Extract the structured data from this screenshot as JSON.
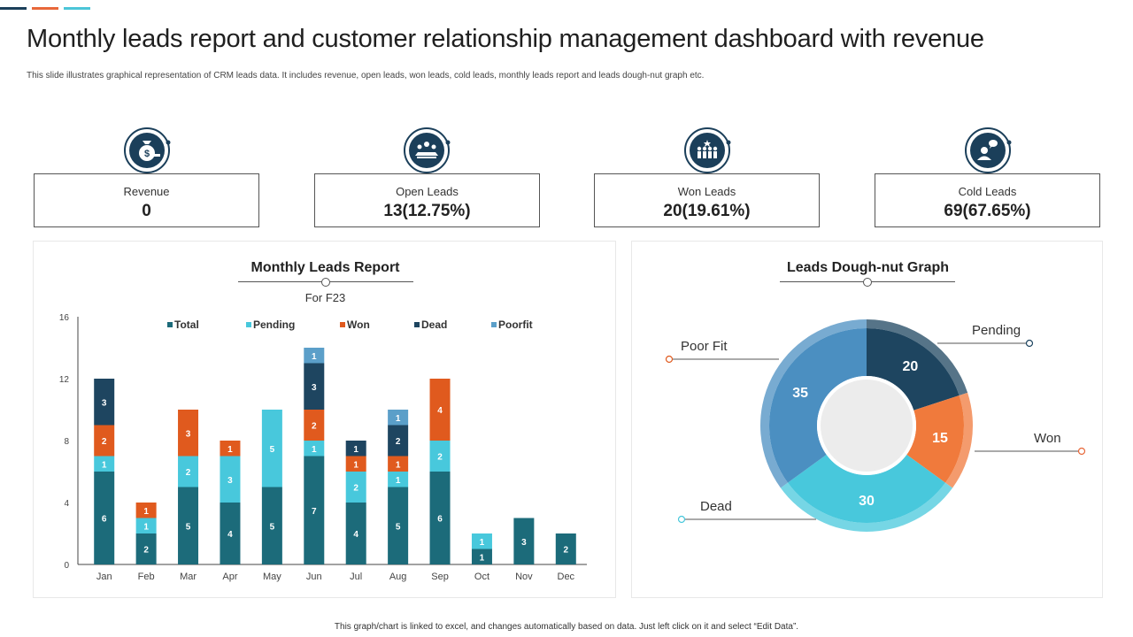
{
  "page": {
    "title": "Monthly leads report and customer relationship management dashboard with revenue",
    "subtitle": "This slide illustrates graphical representation of CRM  leads data. It includes revenue, open leads, won leads, cold leads, monthly leads report and leads dough-nut graph  etc.",
    "footer": "This graph/chart is linked to excel, and changes automatically based on data. Just left click on it and select “Edit Data”."
  },
  "colors": {
    "navy": "#1b3f5a",
    "accent_orange": "#e8683a",
    "accent_cyan": "#4cc5d8",
    "total": "#1c6b7a",
    "pending": "#48c8dc",
    "won": "#e05a1e",
    "dead": "#1e4560",
    "poorfit": "#5b9fc9"
  },
  "kpis": [
    {
      "label": "Revenue",
      "value": "0",
      "icon": "money-bag-icon"
    },
    {
      "label": "Open Leads",
      "value": "13(12.75%)",
      "icon": "team-meeting-icon"
    },
    {
      "label": "Won Leads",
      "value": "20(19.61%)",
      "icon": "group-celebrate-icon"
    },
    {
      "label": "Cold Leads",
      "value": "69(67.65%)",
      "icon": "person-chat-icon"
    }
  ],
  "monthly_panel": {
    "title": "Monthly Leads Report",
    "subtitle": "For F23"
  },
  "donut_panel": {
    "title": "Leads Dough-nut Graph"
  },
  "chart_data": [
    {
      "type": "bar",
      "stacked": true,
      "title": "Monthly Leads Report",
      "subtitle": "For F23",
      "categories": [
        "Jan",
        "Feb",
        "Mar",
        "Apr",
        "May",
        "Jun",
        "Jul",
        "Aug",
        "Sep",
        "Oct",
        "Nov",
        "Dec"
      ],
      "series": [
        {
          "name": "Total",
          "color": "#1c6b7a",
          "values": [
            6,
            2,
            5,
            4,
            5,
            7,
            4,
            5,
            6,
            1,
            3,
            2
          ]
        },
        {
          "name": "Pending",
          "color": "#48c8dc",
          "values": [
            1,
            1,
            2,
            3,
            5,
            1,
            2,
            1,
            2,
            1,
            0,
            0
          ]
        },
        {
          "name": "Won",
          "color": "#e05a1e",
          "values": [
            2,
            1,
            3,
            1,
            0,
            2,
            1,
            1,
            4,
            0,
            0,
            0
          ]
        },
        {
          "name": "Dead",
          "color": "#1e4560",
          "values": [
            3,
            0,
            0,
            0,
            0,
            3,
            1,
            2,
            0,
            0,
            0,
            0
          ]
        },
        {
          "name": "Poorfit",
          "color": "#5b9fc9",
          "values": [
            0,
            0,
            0,
            0,
            0,
            1,
            0,
            1,
            0,
            0,
            0,
            0
          ]
        }
      ],
      "yticks": [
        0,
        4,
        8,
        12,
        16
      ],
      "ylim": [
        0,
        16
      ],
      "legend": "top",
      "grid": false
    },
    {
      "type": "pie",
      "donut": true,
      "title": "Leads Dough-nut Graph",
      "slices": [
        {
          "label": "Pending",
          "value": 20,
          "color": "#1e4560"
        },
        {
          "label": "Won",
          "value": 15,
          "color": "#f07a3c"
        },
        {
          "label": "Dead",
          "value": 30,
          "color": "#48c8dc"
        },
        {
          "label": "Poor Fit",
          "value": 35,
          "color": "#4b8fc1"
        }
      ]
    }
  ]
}
